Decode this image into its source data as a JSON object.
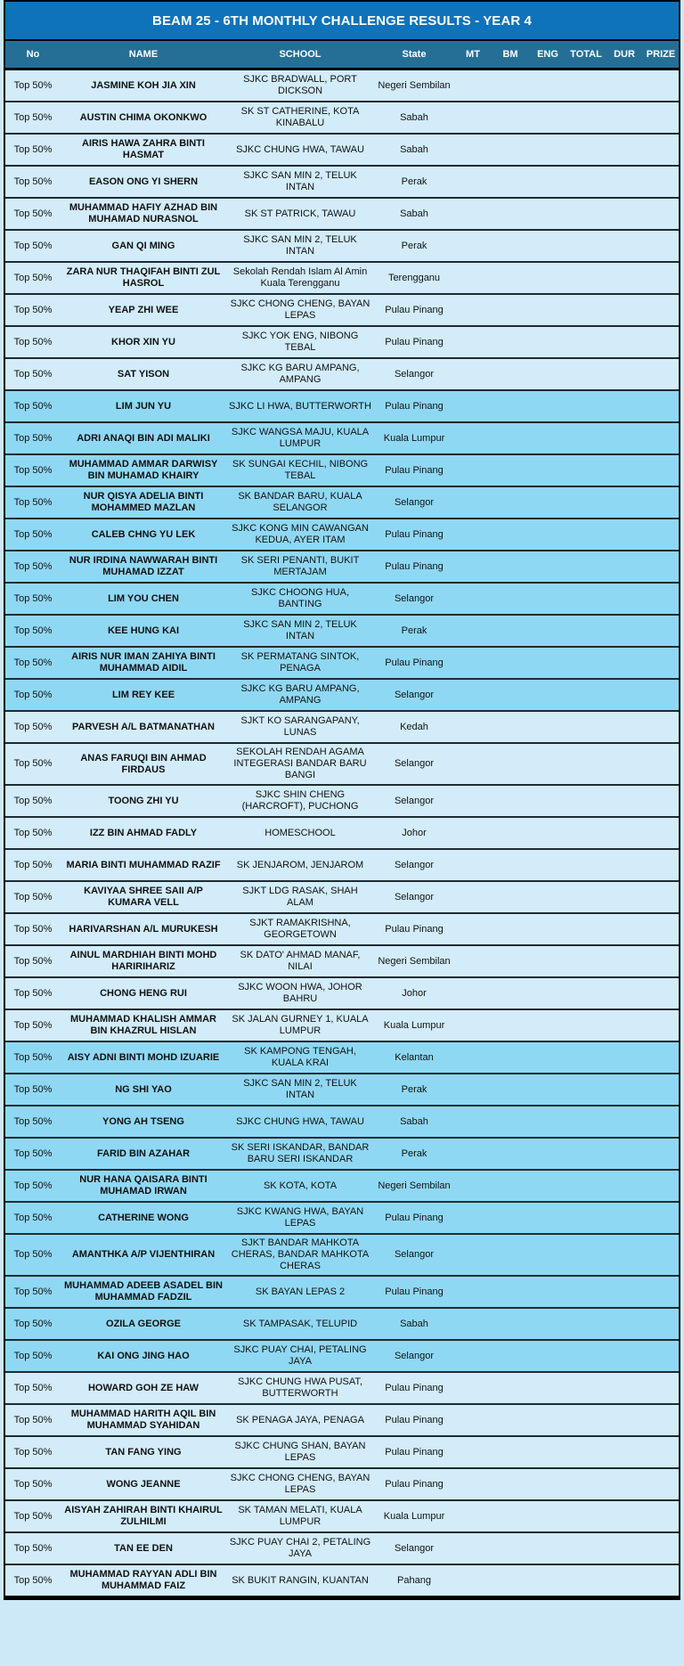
{
  "title": "BEAM 25 - 6TH MONTHLY CHALLENGE RESULTS - YEAR 4",
  "columns": [
    "No",
    "NAME",
    "SCHOOL",
    "State",
    "MT",
    "BM",
    "ENG",
    "TOTAL",
    "DUR",
    "PRIZE"
  ],
  "colors": {
    "title_bar_bg": "#0e73ba",
    "header_row_bg": "#256f97",
    "row_band_light": "#d2ecfa",
    "row_band_dark": "#8fd8f4",
    "page_bg": "#cde9f8"
  },
  "rows": [
    {
      "no": "Top 50%",
      "name": "JASMINE KOH JIA XIN",
      "school": "SJKC BRADWALL, PORT DICKSON",
      "state": "Negeri Sembilan"
    },
    {
      "no": "Top 50%",
      "name": "AUSTIN CHIMA OKONKWO",
      "school": "SK ST CATHERINE, KOTA KINABALU",
      "state": "Sabah"
    },
    {
      "no": "Top 50%",
      "name": "AIRIS HAWA ZAHRA BINTI HASMAT",
      "school": "SJKC CHUNG HWA, TAWAU",
      "state": "Sabah"
    },
    {
      "no": "Top 50%",
      "name": "EASON ONG YI SHERN",
      "school": "SJKC SAN MIN 2, TELUK INTAN",
      "state": "Perak"
    },
    {
      "no": "Top 50%",
      "name": "MUHAMMAD HAFIY AZHAD BIN MUHAMAD NURASNOL",
      "school": "SK ST PATRICK, TAWAU",
      "state": "Sabah"
    },
    {
      "no": "Top 50%",
      "name": "GAN QI MING",
      "school": "SJKC SAN MIN 2, TELUK INTAN",
      "state": "Perak"
    },
    {
      "no": "Top 50%",
      "name": "ZARA NUR THAQIFAH BINTI ZUL HASROL",
      "school": "Sekolah Rendah Islam Al Amin Kuala Terengganu",
      "state": "Terengganu"
    },
    {
      "no": "Top 50%",
      "name": "YEAP ZHI WEE",
      "school": "SJKC CHONG CHENG, BAYAN LEPAS",
      "state": "Pulau Pinang"
    },
    {
      "no": "Top 50%",
      "name": "KHOR XIN YU",
      "school": "SJKC YOK ENG, NIBONG TEBAL",
      "state": "Pulau Pinang"
    },
    {
      "no": "Top 50%",
      "name": "SAT YISON",
      "school": "SJKC KG BARU AMPANG, AMPANG",
      "state": "Selangor"
    },
    {
      "no": "Top 50%",
      "name": "LIM JUN YU",
      "school": "SJKC LI HWA, BUTTERWORTH",
      "state": "Pulau Pinang"
    },
    {
      "no": "Top 50%",
      "name": "ADRI ANAQI BIN ADI MALIKI",
      "school": "SJKC WANGSA MAJU, KUALA LUMPUR",
      "state": "Kuala Lumpur"
    },
    {
      "no": "Top 50%",
      "name": "MUHAMMAD AMMAR DARWISY BIN MUHAMAD KHAIRY",
      "school": "SK SUNGAI KECHIL, NIBONG TEBAL",
      "state": "Pulau Pinang"
    },
    {
      "no": "Top 50%",
      "name": "NUR QISYA ADELIA BINTI MOHAMMED MAZLAN",
      "school": "SK BANDAR BARU, KUALA SELANGOR",
      "state": "Selangor"
    },
    {
      "no": "Top 50%",
      "name": "CALEB CHNG YU LEK",
      "school": "SJKC KONG MIN CAWANGAN KEDUA, AYER ITAM",
      "state": "Pulau Pinang"
    },
    {
      "no": "Top 50%",
      "name": "NUR IRDINA NAWWARAH BINTI MUHAMAD IZZAT",
      "school": "SK SERI PENANTI, BUKIT MERTAJAM",
      "state": "Pulau Pinang"
    },
    {
      "no": "Top 50%",
      "name": "LIM YOU CHEN",
      "school": "SJKC CHOONG HUA, BANTING",
      "state": "Selangor"
    },
    {
      "no": "Top 50%",
      "name": "KEE HUNG KAI",
      "school": "SJKC SAN MIN 2, TELUK INTAN",
      "state": "Perak"
    },
    {
      "no": "Top 50%",
      "name": "AIRIS NUR IMAN ZAHIYA BINTI MUHAMMAD AIDIL",
      "school": "SK PERMATANG SINTOK, PENAGA",
      "state": "Pulau Pinang"
    },
    {
      "no": "Top 50%",
      "name": "LIM REY KEE",
      "school": "SJKC KG BARU AMPANG, AMPANG",
      "state": "Selangor"
    },
    {
      "no": "Top 50%",
      "name": "PARVESH A/L BATMANATHAN",
      "school": "SJKT KO SARANGAPANY, LUNAS",
      "state": "Kedah"
    },
    {
      "no": "Top 50%",
      "name": "ANAS FARUQI BIN AHMAD FIRDAUS",
      "school": "SEKOLAH RENDAH AGAMA INTEGERASI BANDAR BARU BANGI",
      "state": "Selangor"
    },
    {
      "no": "Top 50%",
      "name": "TOONG ZHI YU",
      "school": "SJKC SHIN CHENG (HARCROFT), PUCHONG",
      "state": "Selangor"
    },
    {
      "no": "Top 50%",
      "name": "IZZ BIN AHMAD FADLY",
      "school": "HOMESCHOOL",
      "state": "Johor"
    },
    {
      "no": "Top 50%",
      "name": "MARIA BINTI MUHAMMAD RAZIF",
      "school": "SK JENJAROM, JENJAROM",
      "state": "Selangor"
    },
    {
      "no": "Top 50%",
      "name": "KAVIYAA SHREE SAII A/P KUMARA VELL",
      "school": "SJKT LDG RASAK, SHAH ALAM",
      "state": "Selangor"
    },
    {
      "no": "Top 50%",
      "name": "HARIVARSHAN A/L MURUKESH",
      "school": "SJKT RAMAKRISHNA, GEORGETOWN",
      "state": "Pulau Pinang"
    },
    {
      "no": "Top 50%",
      "name": "AINUL MARDHIAH BINTI MOHD HARIRIHARIZ",
      "school": "SK DATO' AHMAD MANAF, NILAI",
      "state": "Negeri Sembilan"
    },
    {
      "no": "Top 50%",
      "name": "CHONG HENG RUI",
      "school": "SJKC WOON HWA, JOHOR BAHRU",
      "state": "Johor"
    },
    {
      "no": "Top 50%",
      "name": "MUHAMMAD KHALISH AMMAR BIN KHAZRUL HISLAN",
      "school": "SK JALAN GURNEY 1, KUALA LUMPUR",
      "state": "Kuala Lumpur"
    },
    {
      "no": "Top 50%",
      "name": "AISY ADNI BINTI MOHD IZUARIE",
      "school": "SK KAMPONG TENGAH, KUALA KRAI",
      "state": "Kelantan"
    },
    {
      "no": "Top 50%",
      "name": "NG SHI YAO",
      "school": "SJKC SAN MIN 2, TELUK INTAN",
      "state": "Perak"
    },
    {
      "no": "Top 50%",
      "name": "YONG AH TSENG",
      "school": "SJKC CHUNG HWA, TAWAU",
      "state": "Sabah"
    },
    {
      "no": "Top 50%",
      "name": "FARID BIN AZAHAR",
      "school": "SK SERI ISKANDAR, BANDAR BARU SERI ISKANDAR",
      "state": "Perak"
    },
    {
      "no": "Top 50%",
      "name": "NUR HANA QAISARA BINTI MUHAMAD IRWAN",
      "school": "SK KOTA, KOTA",
      "state": "Negeri Sembilan"
    },
    {
      "no": "Top 50%",
      "name": "CATHERINE WONG",
      "school": "SJKC KWANG HWA, BAYAN LEPAS",
      "state": "Pulau Pinang"
    },
    {
      "no": "Top 50%",
      "name": "AMANTHKA A/P VIJENTHIRAN",
      "school": "SJKT BANDAR MAHKOTA CHERAS, BANDAR MAHKOTA CHERAS",
      "state": "Selangor"
    },
    {
      "no": "Top 50%",
      "name": "MUHAMMAD ADEEB ASADEL BIN MUHAMMAD FADZIL",
      "school": "SK BAYAN LEPAS 2",
      "state": "Pulau Pinang"
    },
    {
      "no": "Top 50%",
      "name": "OZILA GEORGE",
      "school": "SK TAMPASAK, TELUPID",
      "state": "Sabah"
    },
    {
      "no": "Top 50%",
      "name": "KAI ONG JING HAO",
      "school": "SJKC PUAY CHAI, PETALING JAYA",
      "state": "Selangor"
    },
    {
      "no": "Top 50%",
      "name": "HOWARD GOH ZE HAW",
      "school": "SJKC CHUNG HWA PUSAT, BUTTERWORTH",
      "state": "Pulau Pinang"
    },
    {
      "no": "Top 50%",
      "name": "MUHAMMAD HARITH AQIL BIN MUHAMMAD SYAHIDAN",
      "school": "SK PENAGA JAYA, PENAGA",
      "state": "Pulau Pinang"
    },
    {
      "no": "Top 50%",
      "name": "TAN FANG YING",
      "school": "SJKC CHUNG SHAN, BAYAN LEPAS",
      "state": "Pulau Pinang"
    },
    {
      "no": "Top 50%",
      "name": "WONG JEANNE",
      "school": "SJKC CHONG CHENG, BAYAN LEPAS",
      "state": "Pulau Pinang"
    },
    {
      "no": "Top 50%",
      "name": "AISYAH ZAHIRAH BINTI KHAIRUL ZULHILMI",
      "school": "SK TAMAN MELATI, KUALA LUMPUR",
      "state": "Kuala Lumpur"
    },
    {
      "no": "Top 50%",
      "name": "TAN EE DEN",
      "school": "SJKC PUAY CHAI 2, PETALING JAYA",
      "state": "Selangor"
    },
    {
      "no": "Top 50%",
      "name": "MUHAMMAD RAYYAN ADLI BIN MUHAMMAD FAIZ",
      "school": "SK BUKIT RANGIN, KUANTAN",
      "state": "Pahang"
    }
  ]
}
